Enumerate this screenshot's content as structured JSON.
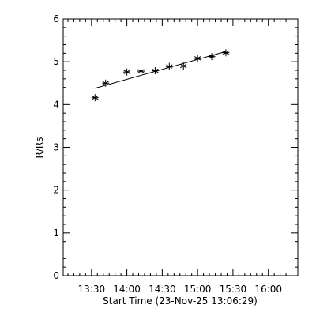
{
  "chart_data": {
    "type": "scatter",
    "xlabel": "Start Time (23-Nov-25 13:06:29)",
    "ylabel": "R/Rs",
    "x_ticks": [
      "13:30",
      "14:00",
      "14:30",
      "15:00",
      "15:30",
      "16:00"
    ],
    "y_ticks": [
      "0",
      "1",
      "2",
      "3",
      "4",
      "5",
      "6"
    ],
    "xlim": [
      "13:06",
      "16:25"
    ],
    "ylim": [
      0,
      6
    ],
    "grid": false,
    "series": [
      {
        "marker": "asterisk",
        "points": [
          {
            "x": "13:33",
            "y": 4.16
          },
          {
            "x": "13:42",
            "y": 4.5
          },
          {
            "x": "14:00",
            "y": 4.76
          },
          {
            "x": "14:12",
            "y": 4.78
          },
          {
            "x": "14:24",
            "y": 4.79
          },
          {
            "x": "14:36",
            "y": 4.89
          },
          {
            "x": "14:48",
            "y": 4.9
          },
          {
            "x": "15:00",
            "y": 5.08
          },
          {
            "x": "15:12",
            "y": 5.12
          },
          {
            "x": "15:24",
            "y": 5.21
          }
        ]
      }
    ],
    "fit_line": {
      "x": [
        "13:33",
        "15:24"
      ],
      "y": [
        4.38,
        5.24
      ]
    }
  }
}
